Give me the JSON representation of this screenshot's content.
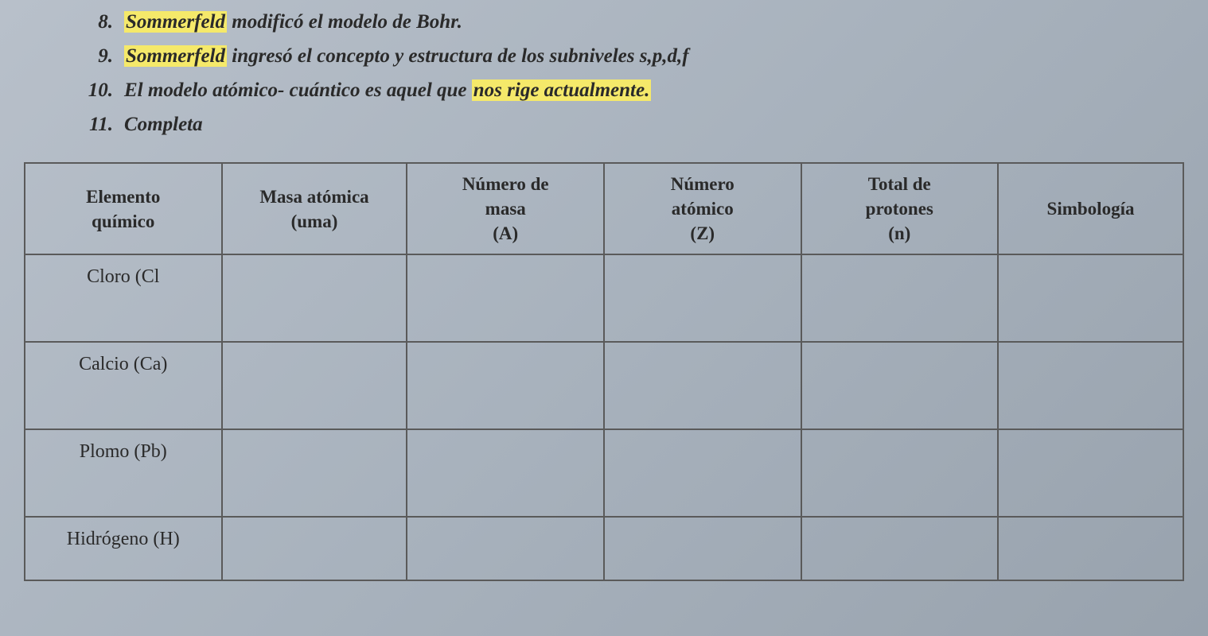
{
  "list": {
    "items": [
      {
        "num": "8.",
        "pre": "",
        "hl": "Sommerfeld",
        "mid": " modificó el modelo de Bohr.",
        "hl2": "",
        "post": ""
      },
      {
        "num": "9.",
        "pre": "",
        "hl": "Sommerfeld",
        "mid": " ingresó el concepto y estructura de los subniveles s,p,d,f",
        "hl2": "",
        "post": ""
      },
      {
        "num": "10.",
        "pre": "El modelo atómico- cuántico es aquel que ",
        "hl": "",
        "mid": "",
        "hl2": "nos rige actualmente.",
        "post": ""
      },
      {
        "num": "11.",
        "pre": "Completa",
        "hl": "",
        "mid": "",
        "hl2": "",
        "post": ""
      }
    ]
  },
  "table": {
    "columns": [
      "Elemento químico",
      "Masa atómica (uma)",
      "Número de masa (A)",
      "Número atómico (Z)",
      "Total de protones (n)",
      "Simbología"
    ],
    "col_html": {
      "c0": "Elemento<br>químico",
      "c1": "Masa atómica<br>(uma)",
      "c2": "Número de<br>masa<br>(A)",
      "c3": "Número<br>atómico<br>(Z)",
      "c4": "Total de<br>protones<br>(n)",
      "c5": "Simbología"
    },
    "rows": [
      {
        "label": "Cloro (Cl",
        "c1": "",
        "c2": "",
        "c3": "",
        "c4": "",
        "c5": ""
      },
      {
        "label": "Calcio (Ca)",
        "c1": "",
        "c2": "",
        "c3": "",
        "c4": "",
        "c5": ""
      },
      {
        "label": "Plomo (Pb)",
        "c1": "",
        "c2": "",
        "c3": "",
        "c4": "",
        "c5": ""
      },
      {
        "label": "Hidrógeno (H)",
        "c1": "",
        "c2": "",
        "c3": "",
        "c4": "",
        "c5": ""
      }
    ],
    "border_color": "#5a5a5a",
    "header_fontsize": 23,
    "cell_fontsize": 24
  },
  "colors": {
    "background_start": "#b8c0ca",
    "background_end": "#98a2ad",
    "text": "#2a2a2a",
    "highlight": "#f5e96a"
  }
}
